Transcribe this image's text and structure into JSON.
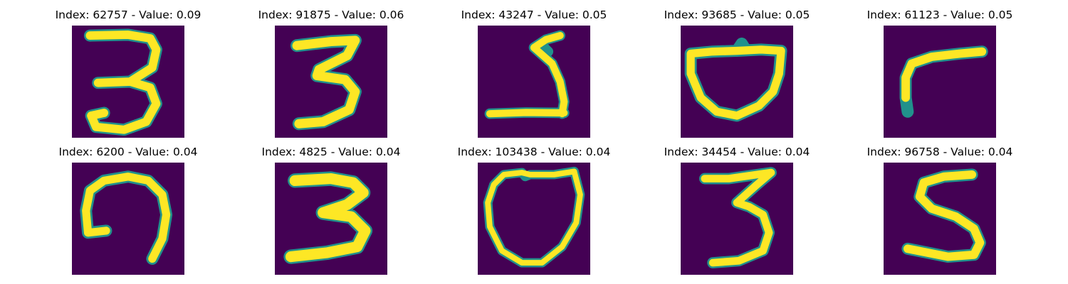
{
  "colors": {
    "background": "#440154",
    "stroke_inner": "#fde725",
    "stroke_edge": "#21918c",
    "stroke_mid": "#5ec962"
  },
  "panels": [
    {
      "title": "Index: 62757 - Value: 0.09",
      "digit": "3"
    },
    {
      "title": "Index: 91875 - Value: 0.06",
      "digit": "3"
    },
    {
      "title": "Index: 43247 - Value: 0.05",
      "digit": "2"
    },
    {
      "title": "Index: 93685 - Value: 0.05",
      "digit": "0"
    },
    {
      "title": "Index: 61123 - Value: 0.05",
      "digit": "7"
    },
    {
      "title": "Index: 6200 - Value: 0.04",
      "digit": "9"
    },
    {
      "title": "Index: 4825 - Value: 0.04",
      "digit": "3"
    },
    {
      "title": "Index: 103438 - Value: 0.04",
      "digit": "0"
    },
    {
      "title": "Index: 34454 - Value: 0.04",
      "digit": "3"
    },
    {
      "title": "Index: 96758 - Value: 0.04",
      "digit": "5"
    }
  ]
}
